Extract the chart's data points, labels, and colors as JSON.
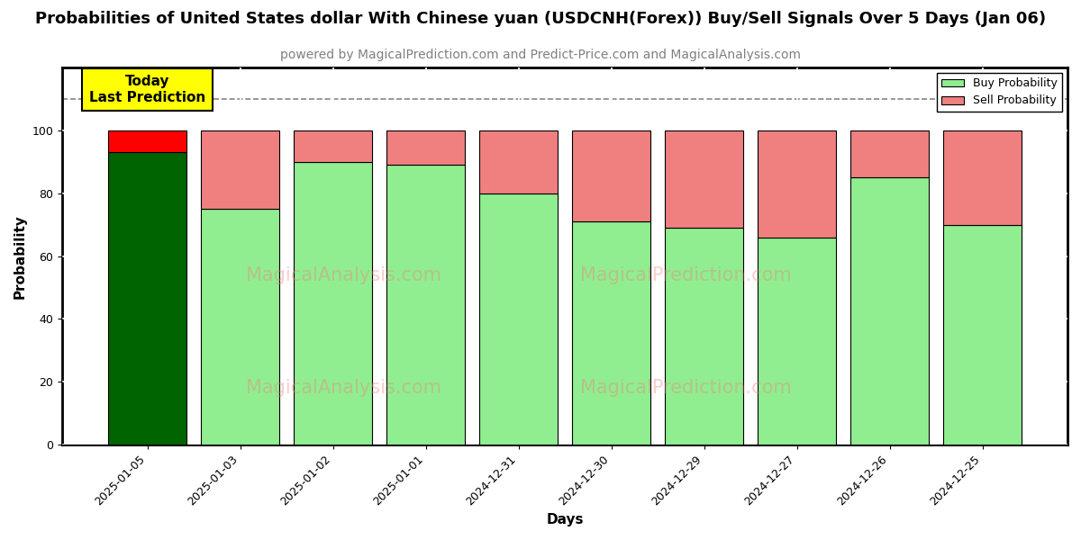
{
  "title": "Probabilities of United States dollar With Chinese yuan (USDCNH(Forex)) Buy/Sell Signals Over 5 Days (Jan 06)",
  "subtitle": "powered by MagicalPrediction.com and Predict-Price.com and MagicalAnalysis.com",
  "xlabel": "Days",
  "ylabel": "Probability",
  "categories": [
    "2025-01-05",
    "2025-01-03",
    "2025-01-02",
    "2025-01-01",
    "2024-12-31",
    "2024-12-30",
    "2024-12-29",
    "2024-12-27",
    "2024-12-26",
    "2024-12-25"
  ],
  "buy_values": [
    93,
    75,
    90,
    89,
    80,
    71,
    69,
    66,
    85,
    70
  ],
  "sell_values": [
    7,
    25,
    10,
    11,
    20,
    29,
    31,
    34,
    15,
    30
  ],
  "today_buy_color": "#006400",
  "today_sell_color": "#FF0000",
  "buy_color": "#90EE90",
  "sell_color": "#F08080",
  "today_label_bg": "#FFFF00",
  "today_label_text": "Today\nLast Prediction",
  "legend_buy": "Buy Probability",
  "legend_sell": "Sell Probability",
  "yticks": [
    0,
    20,
    40,
    60,
    80,
    100
  ],
  "dashed_line_y": 110,
  "watermark_left": "MagicalAnalysis.com",
  "watermark_right": "MagicalPrediction.com",
  "title_fontsize": 13,
  "subtitle_fontsize": 10,
  "bar_width": 0.85,
  "edgecolor": "#000000"
}
